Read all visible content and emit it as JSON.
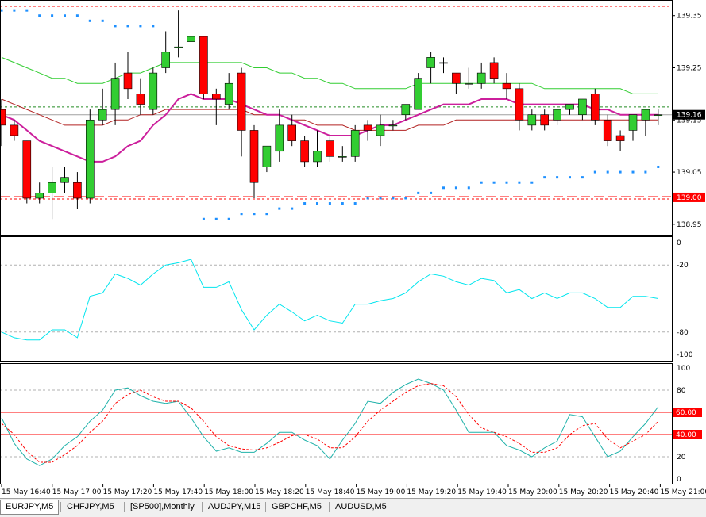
{
  "chart_data": {
    "type": "candlestick",
    "symbol_tab": "EURJPY,M5",
    "price_axis": {
      "ticks": [
        "139.35",
        "139.25",
        "139.15",
        "139.05",
        "138.95"
      ],
      "ylim": [
        138.93,
        139.38
      ]
    },
    "current_price_label": "139.16",
    "level_label": "139.00",
    "time_labels": [
      "15 May 16:40",
      "15 May 17:00",
      "15 May 17:20",
      "15 May 17:40",
      "15 May 18:00",
      "15 May 18:20",
      "15 May 18:40",
      "15 May 19:00",
      "15 May 19:20",
      "15 May 19:40",
      "15 May 20:00",
      "15 May 20:20",
      "15 May 20:40",
      "15 May 21:00"
    ],
    "candles": [
      {
        "o": 139.17,
        "h": 139.19,
        "l": 139.1,
        "c": 139.14
      },
      {
        "o": 139.14,
        "h": 139.15,
        "l": 139.11,
        "c": 139.12
      },
      {
        "o": 139.11,
        "h": 139.11,
        "l": 138.99,
        "c": 139.0
      },
      {
        "o": 139.0,
        "h": 139.03,
        "l": 138.99,
        "c": 139.01
      },
      {
        "o": 139.01,
        "h": 139.06,
        "l": 138.96,
        "c": 139.03
      },
      {
        "o": 139.03,
        "h": 139.06,
        "l": 139.01,
        "c": 139.04
      },
      {
        "o": 139.03,
        "h": 139.05,
        "l": 138.98,
        "c": 139.0
      },
      {
        "o": 139.0,
        "h": 139.17,
        "l": 138.99,
        "c": 139.15
      },
      {
        "o": 139.15,
        "h": 139.21,
        "l": 139.14,
        "c": 139.17
      },
      {
        "o": 139.17,
        "h": 139.26,
        "l": 139.14,
        "c": 139.23
      },
      {
        "o": 139.24,
        "h": 139.28,
        "l": 139.19,
        "c": 139.21
      },
      {
        "o": 139.2,
        "h": 139.23,
        "l": 139.16,
        "c": 139.18
      },
      {
        "o": 139.17,
        "h": 139.25,
        "l": 139.16,
        "c": 139.24
      },
      {
        "o": 139.25,
        "h": 139.32,
        "l": 139.24,
        "c": 139.28
      },
      {
        "o": 139.29,
        "h": 139.36,
        "l": 139.27,
        "c": 139.29
      },
      {
        "o": 139.3,
        "h": 139.36,
        "l": 139.29,
        "c": 139.31
      },
      {
        "o": 139.31,
        "h": 139.31,
        "l": 139.19,
        "c": 139.2
      },
      {
        "o": 139.2,
        "h": 139.21,
        "l": 139.14,
        "c": 139.19
      },
      {
        "o": 139.18,
        "h": 139.24,
        "l": 139.17,
        "c": 139.22
      },
      {
        "o": 139.24,
        "h": 139.25,
        "l": 139.08,
        "c": 139.13
      },
      {
        "o": 139.13,
        "h": 139.14,
        "l": 139.0,
        "c": 139.03
      },
      {
        "o": 139.06,
        "h": 139.1,
        "l": 139.05,
        "c": 139.1
      },
      {
        "o": 139.09,
        "h": 139.17,
        "l": 139.07,
        "c": 139.14
      },
      {
        "o": 139.14,
        "h": 139.16,
        "l": 139.1,
        "c": 139.11
      },
      {
        "o": 139.11,
        "h": 139.12,
        "l": 139.06,
        "c": 139.07
      },
      {
        "o": 139.07,
        "h": 139.13,
        "l": 139.06,
        "c": 139.09
      },
      {
        "o": 139.11,
        "h": 139.12,
        "l": 139.07,
        "c": 139.08
      },
      {
        "o": 139.08,
        "h": 139.1,
        "l": 139.07,
        "c": 139.08
      },
      {
        "o": 139.08,
        "h": 139.14,
        "l": 139.07,
        "c": 139.13
      },
      {
        "o": 139.14,
        "h": 139.15,
        "l": 139.11,
        "c": 139.13
      },
      {
        "o": 139.12,
        "h": 139.16,
        "l": 139.1,
        "c": 139.14
      },
      {
        "o": 139.14,
        "h": 139.15,
        "l": 139.13,
        "c": 139.14
      },
      {
        "o": 139.16,
        "h": 139.18,
        "l": 139.15,
        "c": 139.18
      },
      {
        "o": 139.17,
        "h": 139.24,
        "l": 139.17,
        "c": 139.23
      },
      {
        "o": 139.25,
        "h": 139.28,
        "l": 139.22,
        "c": 139.27
      },
      {
        "o": 139.26,
        "h": 139.27,
        "l": 139.24,
        "c": 139.26
      },
      {
        "o": 139.24,
        "h": 139.24,
        "l": 139.2,
        "c": 139.22
      },
      {
        "o": 139.22,
        "h": 139.25,
        "l": 139.21,
        "c": 139.22
      },
      {
        "o": 139.22,
        "h": 139.26,
        "l": 139.21,
        "c": 139.24
      },
      {
        "o": 139.26,
        "h": 139.27,
        "l": 139.22,
        "c": 139.23
      },
      {
        "o": 139.22,
        "h": 139.24,
        "l": 139.19,
        "c": 139.21
      },
      {
        "o": 139.21,
        "h": 139.22,
        "l": 139.13,
        "c": 139.15
      },
      {
        "o": 139.14,
        "h": 139.17,
        "l": 139.13,
        "c": 139.16
      },
      {
        "o": 139.16,
        "h": 139.17,
        "l": 139.13,
        "c": 139.14
      },
      {
        "o": 139.15,
        "h": 139.17,
        "l": 139.14,
        "c": 139.17
      },
      {
        "o": 139.17,
        "h": 139.18,
        "l": 139.16,
        "c": 139.18
      },
      {
        "o": 139.16,
        "h": 139.19,
        "l": 139.15,
        "c": 139.19
      },
      {
        "o": 139.2,
        "h": 139.21,
        "l": 139.14,
        "c": 139.15
      },
      {
        "o": 139.15,
        "h": 139.16,
        "l": 139.1,
        "c": 139.11
      },
      {
        "o": 139.12,
        "h": 139.13,
        "l": 139.09,
        "c": 139.11
      },
      {
        "o": 139.13,
        "h": 139.16,
        "l": 139.11,
        "c": 139.16
      },
      {
        "o": 139.15,
        "h": 139.17,
        "l": 139.12,
        "c": 139.17
      },
      {
        "o": 139.16,
        "h": 139.17,
        "l": 139.14,
        "c": 139.16
      }
    ],
    "psar": [
      139.36,
      139.36,
      139.36,
      139.35,
      139.35,
      139.35,
      139.35,
      139.34,
      139.34,
      139.33,
      139.33,
      139.33,
      139.33,
      null,
      null,
      null,
      138.96,
      138.96,
      138.96,
      138.97,
      138.97,
      138.97,
      138.98,
      138.98,
      138.99,
      138.99,
      138.99,
      138.99,
      138.99,
      139.0,
      139.0,
      139.0,
      139.0,
      139.01,
      139.01,
      139.02,
      139.02,
      139.02,
      139.03,
      139.03,
      139.03,
      139.03,
      139.03,
      139.04,
      139.04,
      139.04,
      139.04,
      139.05,
      139.05,
      139.05,
      139.05,
      139.05,
      139.06
    ],
    "ma_fast": [
      139.16,
      139.15,
      139.13,
      139.11,
      139.1,
      139.09,
      139.08,
      139.07,
      139.07,
      139.08,
      139.1,
      139.11,
      139.14,
      139.16,
      139.19,
      139.2,
      139.19,
      139.19,
      139.19,
      139.18,
      139.17,
      139.16,
      139.16,
      139.15,
      139.14,
      139.13,
      139.12,
      139.12,
      139.12,
      139.13,
      139.14,
      139.14,
      139.15,
      139.16,
      139.17,
      139.18,
      139.18,
      139.18,
      139.19,
      139.19,
      139.19,
      139.18,
      139.18,
      139.18,
      139.18,
      139.18,
      139.18,
      139.17,
      139.17,
      139.16,
      139.16,
      139.16,
      139.16
    ],
    "ma_slow_green": [
      139.27,
      139.26,
      139.25,
      139.24,
      139.23,
      139.23,
      139.22,
      139.22,
      139.22,
      139.23,
      139.24,
      139.24,
      139.25,
      139.26,
      139.26,
      139.26,
      139.26,
      139.26,
      139.26,
      139.26,
      139.25,
      139.25,
      139.24,
      139.24,
      139.23,
      139.23,
      139.22,
      139.22,
      139.21,
      139.21,
      139.21,
      139.21,
      139.21,
      139.22,
      139.22,
      139.22,
      139.22,
      139.22,
      139.22,
      139.22,
      139.22,
      139.22,
      139.22,
      139.21,
      139.21,
      139.21,
      139.21,
      139.21,
      139.21,
      139.21,
      139.2,
      139.2,
      139.2
    ],
    "ma_slow_red": [
      139.19,
      139.18,
      139.17,
      139.16,
      139.15,
      139.14,
      139.14,
      139.14,
      139.14,
      139.15,
      139.15,
      139.16,
      139.16,
      139.17,
      139.17,
      139.17,
      139.17,
      139.17,
      139.17,
      139.17,
      139.16,
      139.16,
      139.16,
      139.15,
      139.15,
      139.14,
      139.14,
      139.14,
      139.13,
      139.13,
      139.13,
      139.13,
      139.13,
      139.14,
      139.14,
      139.14,
      139.15,
      139.15,
      139.15,
      139.15,
      139.15,
      139.15,
      139.15,
      139.15,
      139.15,
      139.15,
      139.15,
      139.15,
      139.15,
      139.15,
      139.15,
      139.15,
      139.15
    ],
    "wpr": {
      "ticks": [
        "0",
        "-20",
        "-80",
        "-100"
      ],
      "ylim": [
        -100,
        0
      ],
      "values": [
        -80,
        -85,
        -87,
        -87,
        -78,
        -78,
        -85,
        -48,
        -45,
        -28,
        -32,
        -38,
        -28,
        -20,
        -18,
        -15,
        -40,
        -40,
        -35,
        -60,
        -78,
        -65,
        -55,
        -62,
        -70,
        -65,
        -70,
        -72,
        -55,
        -55,
        -52,
        -50,
        -45,
        -35,
        -28,
        -30,
        -35,
        -38,
        -32,
        -34,
        -45,
        -42,
        -50,
        -45,
        -50,
        -45,
        -45,
        -50,
        -58,
        -58,
        -48,
        -48,
        -50
      ]
    },
    "stochastic": {
      "ticks": [
        "100",
        "80",
        "60",
        "40",
        "20",
        "0"
      ],
      "levels": [
        "60.00",
        "40.00"
      ],
      "ylim": [
        0,
        100
      ],
      "main": [
        55,
        32,
        18,
        12,
        18,
        30,
        38,
        52,
        62,
        80,
        82,
        75,
        70,
        68,
        70,
        55,
        38,
        25,
        28,
        24,
        24,
        32,
        42,
        42,
        35,
        30,
        18,
        35,
        50,
        70,
        68,
        78,
        85,
        90,
        86,
        80,
        62,
        42,
        42,
        42,
        30,
        26,
        20,
        28,
        34,
        58,
        56,
        38,
        20,
        25,
        38,
        50,
        65
      ],
      "signal": [
        50,
        40,
        25,
        15,
        15,
        22,
        30,
        42,
        52,
        68,
        76,
        80,
        74,
        70,
        70,
        64,
        52,
        38,
        30,
        27,
        26,
        28,
        33,
        39,
        40,
        36,
        28,
        28,
        38,
        52,
        62,
        70,
        78,
        84,
        86,
        84,
        74,
        58,
        46,
        42,
        38,
        32,
        24,
        24,
        28,
        40,
        48,
        50,
        36,
        28,
        34,
        40,
        52
      ]
    }
  },
  "tabs": [
    "EURJPY,M5",
    "CHFJPY,M5",
    "[SP500],Monthly",
    "AUDJPY,M15",
    "GBPCHF,M5",
    "AUDUSD,M5"
  ],
  "colors": {
    "bull": "#32cd32",
    "bear": "#ff0000",
    "psar": "#1e90ff",
    "ma_fast": "#cc1f9c",
    "ma_green": "#32cd32",
    "ma_red": "#b22222",
    "wpr": "#00e5ee",
    "stoch_main": "#20b2aa",
    "stoch_signal": "#ff0000",
    "level_tag": "#ff0000",
    "price_tag": "#000000"
  }
}
